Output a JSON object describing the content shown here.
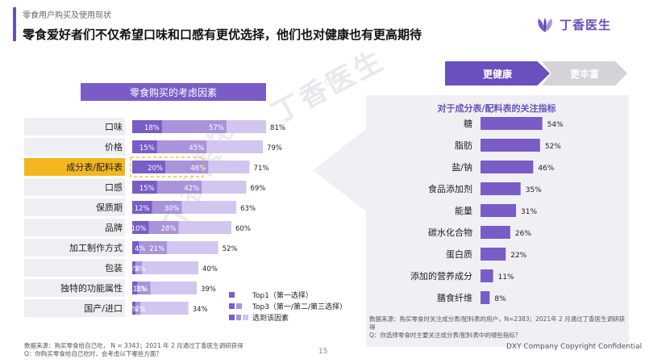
{
  "header": {
    "section": "零食用户购买及使用现状",
    "headline": "零食爱好者们不仅希望口味和口感有更优选择，他们也对健康也有更高期待",
    "logo_text": "丁香医生",
    "watermark": "丁香医生",
    "watermark_sub": "DXY.COM"
  },
  "tabs": {
    "healthy": "更健康",
    "rich": "更丰富"
  },
  "colors": {
    "purple": "#6a4fbf",
    "top1": "#7a5cc7",
    "top3": "#a993db",
    "selected": "#d2c6f0",
    "highlight": "#f2b71f",
    "rowbg": "#efeff3"
  },
  "chart_data": [
    {
      "type": "bar",
      "title": "零食购买的考虑因素",
      "categories": [
        "口味",
        "价格",
        "成分表/配料表",
        "口感",
        "保质期",
        "品牌",
        "加工制作方式",
        "包装",
        "独特的功能属性",
        "国产/进口"
      ],
      "highlighted_category": "成分表/配料表",
      "series": [
        {
          "name": "Top1（第一选择）",
          "values": [
            18,
            15,
            20,
            15,
            12,
            10,
            4,
            2,
            3,
            2
          ]
        },
        {
          "name": "Top3（第一/第二/第三选择）",
          "values": [
            57,
            45,
            46,
            42,
            30,
            28,
            21,
            6,
            11,
            5
          ]
        },
        {
          "name": "选到该因素",
          "values": [
            81,
            79,
            71,
            69,
            63,
            60,
            52,
            40,
            39,
            34
          ]
        }
      ],
      "value_unit": "%"
    },
    {
      "type": "bar",
      "title": "对于成分表/配料表的关注指标",
      "categories": [
        "糖",
        "脂肪",
        "盐/钠",
        "食品添加剂",
        "能量",
        "碳水化合物",
        "蛋白质",
        "添加的营养成分",
        "膳食纤维"
      ],
      "values": [
        54,
        52,
        46,
        35,
        31,
        26,
        22,
        11,
        8
      ],
      "value_unit": "%"
    }
  ],
  "legend": {
    "top1": "Top1（第一选择）",
    "top3": "Top3（第一/第二/第三选择）",
    "selected": "选到该因素"
  },
  "notes": {
    "left_source": "数据来源：购买零食给自己吃， N = 3343；2021 年 2 月通过丁香医生调研获得",
    "left_question": "Q：你购买零食给自己吃时，会考虑以下哪些方面？",
    "right_source": "数据来源：购买零食时关注成分表/配料表的用户，N=2383；2021年 2 月通过丁香医生调研获得",
    "right_question": "Q：你选择零食时主要关注成分表/配料表中的哪些指标？"
  },
  "footer": {
    "page": "15",
    "copyright": "DXY Company Copyright Confidential"
  }
}
